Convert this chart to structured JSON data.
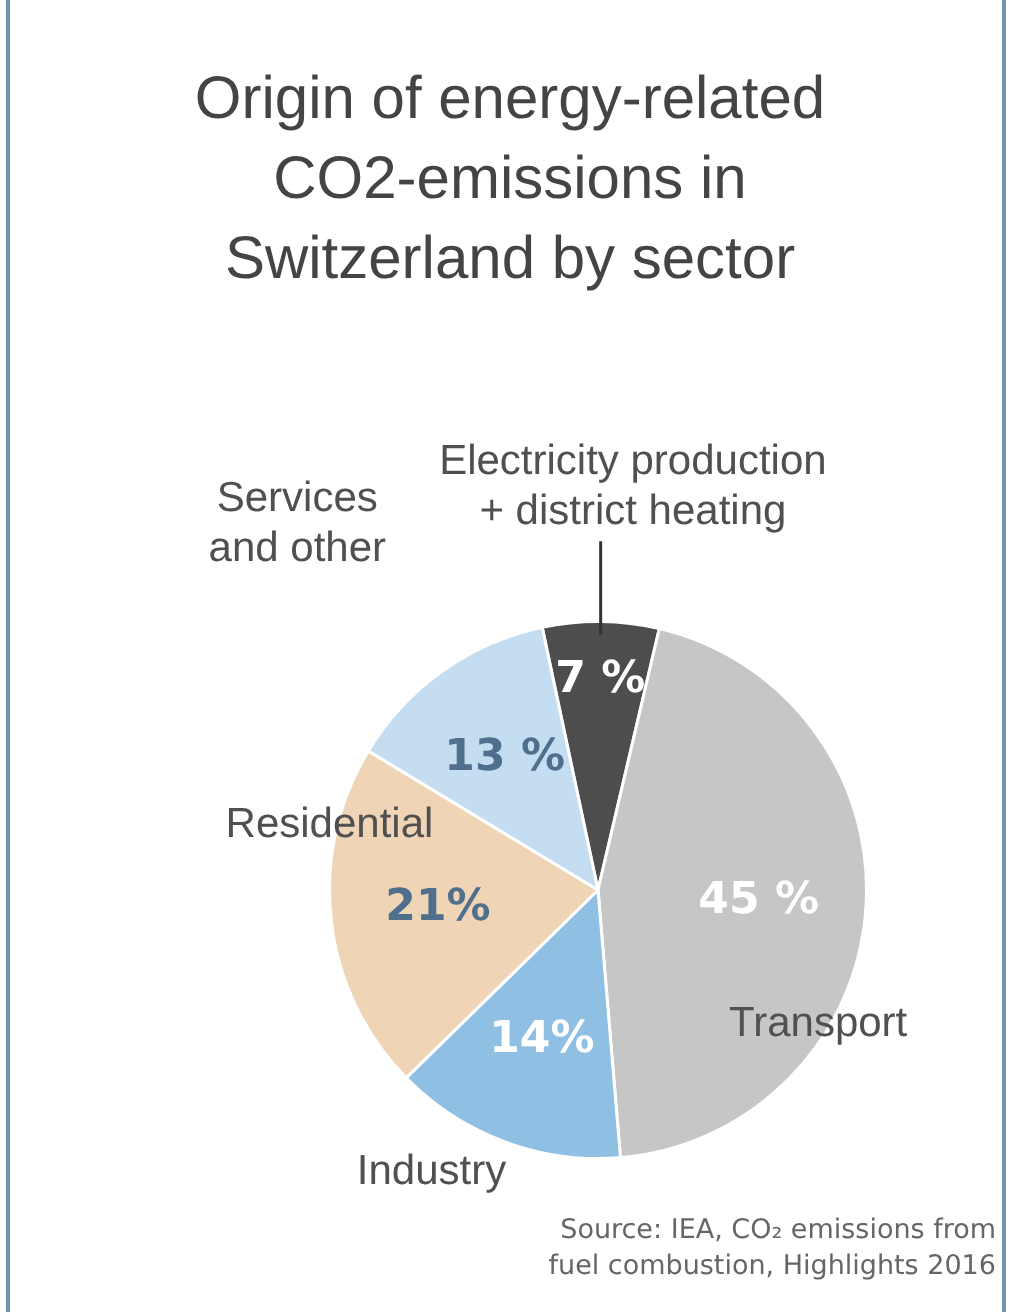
{
  "chart_data": {
    "type": "pie",
    "title": "Origin of energy-related CO2-emissions in Switzerland by sector",
    "categories": [
      "Electricity production\n+ district heating",
      "Transport",
      "Industry",
      "Residential",
      "Services\nand other"
    ],
    "values": [
      7,
      45,
      14,
      21,
      13
    ],
    "value_labels": [
      "7 %",
      "45 %",
      "14%",
      "21%",
      "13 %"
    ],
    "colors": [
      "#4d4d4d",
      "#c6c6c6",
      "#8fbfe2",
      "#efd5b6",
      "#c5ddf1"
    ],
    "legend": false,
    "annotations": [
      "Source: IEA, CO₂ emissions from fuel combustion, Highlights 2016"
    ]
  }
}
